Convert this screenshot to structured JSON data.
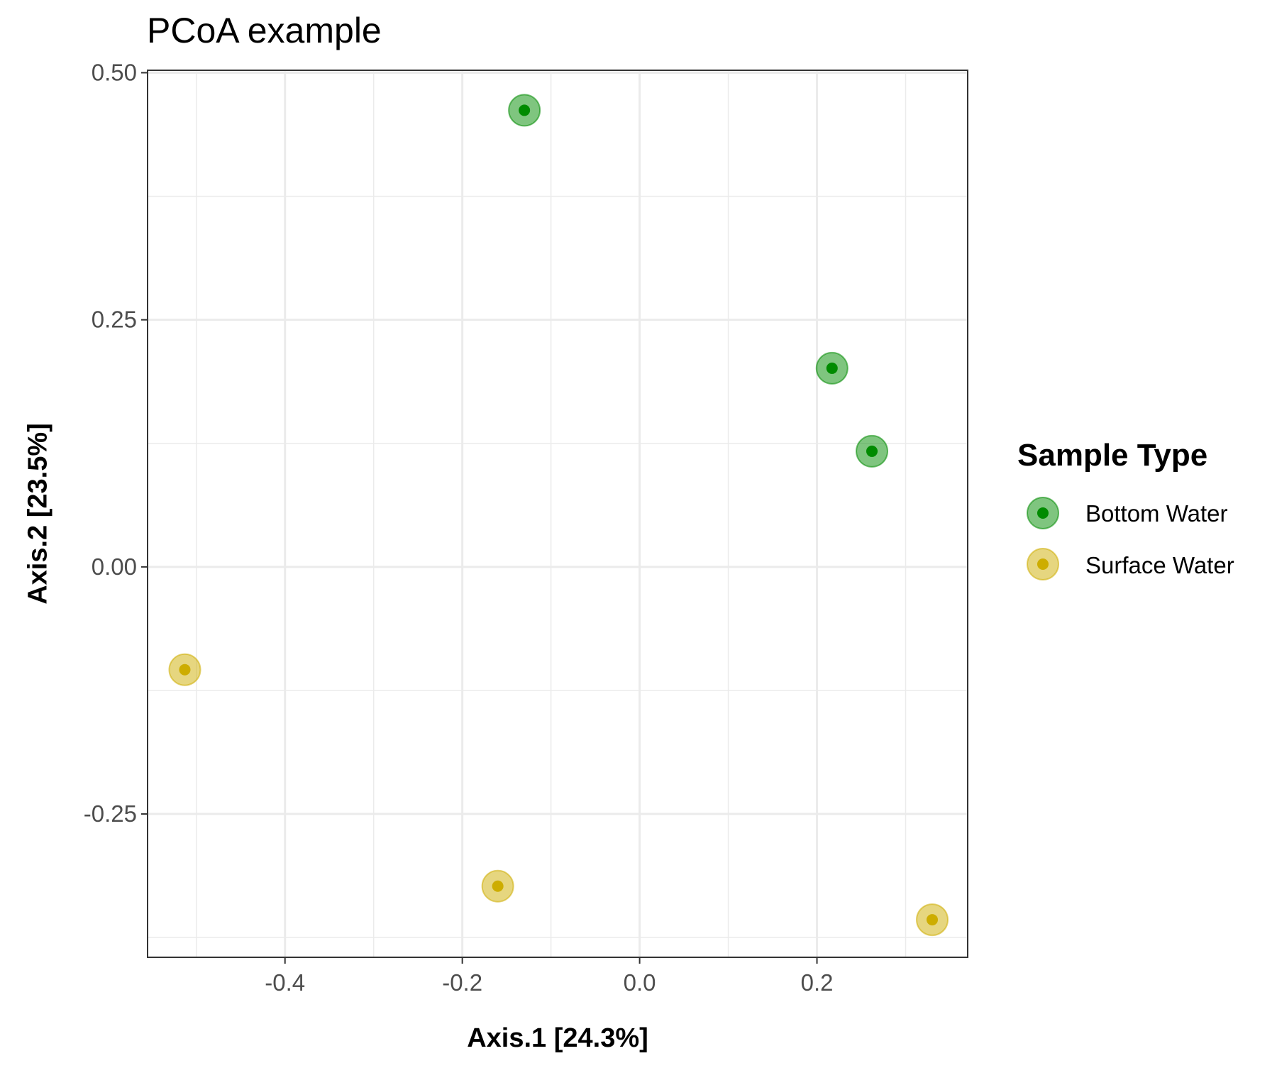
{
  "chart_data": {
    "type": "scatter",
    "title": "PCoA example",
    "xlabel": "Axis.1   [24.3%]",
    "ylabel": "Axis.2   [23.5%]",
    "xlim": [
      -0.555,
      0.37
    ],
    "ylim": [
      -0.395,
      0.5025
    ],
    "x_ticks": [
      -0.4,
      -0.2,
      0.0,
      0.2
    ],
    "x_tick_labels": [
      "-0.4",
      "-0.2",
      "0.0",
      "0.2"
    ],
    "x_minor_ticks": [
      -0.5,
      -0.3,
      -0.1,
      0.1,
      0.3
    ],
    "y_ticks": [
      0.5,
      0.25,
      0.0,
      -0.25
    ],
    "y_tick_labels": [
      "0.50",
      "0.25",
      "0.00",
      "-0.25"
    ],
    "y_minor_ticks": [
      0.375,
      0.125,
      -0.125,
      -0.375
    ],
    "grid": true,
    "legend": {
      "title": "Sample Type",
      "position": "right"
    },
    "series": [
      {
        "name": "Bottom Water",
        "color": "#008B00",
        "points": [
          {
            "x": -0.13,
            "y": 0.462
          },
          {
            "x": 0.217,
            "y": 0.201
          },
          {
            "x": 0.262,
            "y": 0.117
          }
        ]
      },
      {
        "name": "Surface Water",
        "color": "#CDAD00",
        "points": [
          {
            "x": -0.513,
            "y": -0.104
          },
          {
            "x": -0.16,
            "y": -0.323
          },
          {
            "x": 0.33,
            "y": -0.357
          }
        ]
      }
    ]
  }
}
